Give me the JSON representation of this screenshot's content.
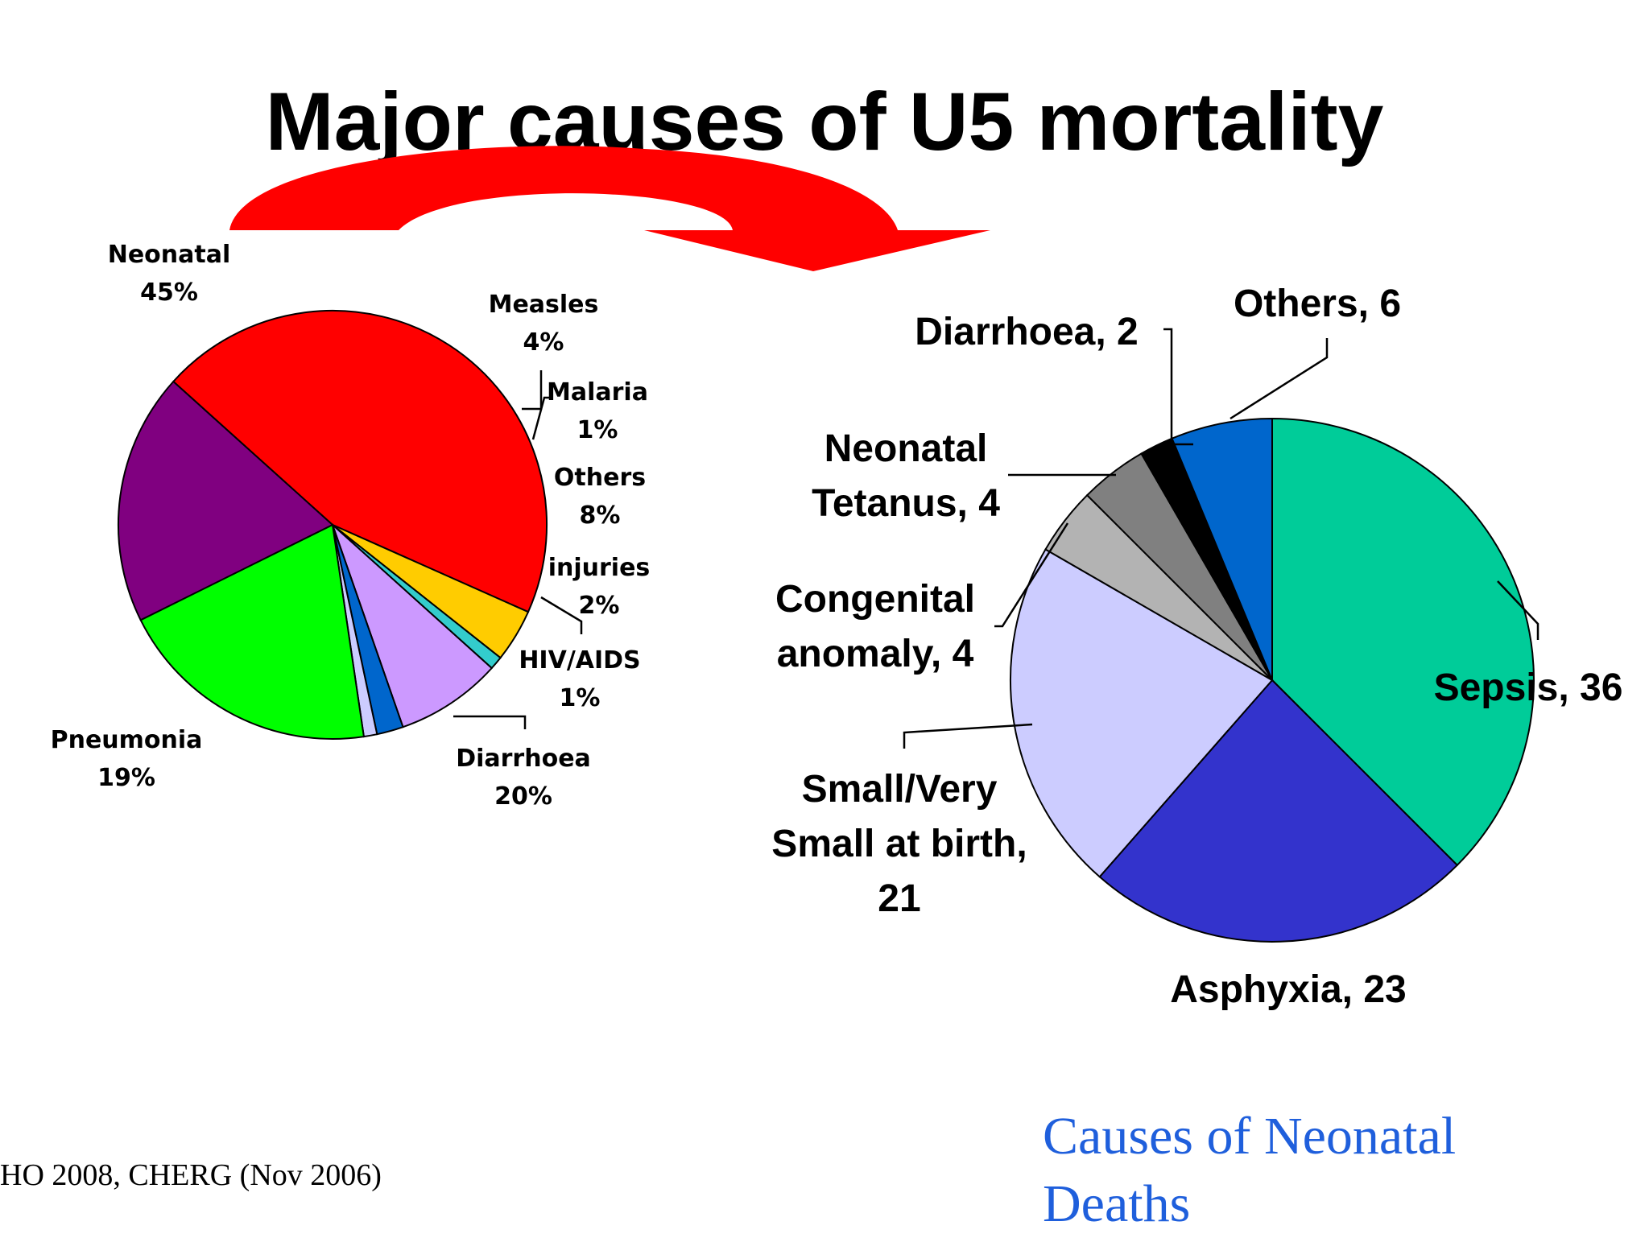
{
  "title": "Major causes of U5 mortality",
  "source": "HO 2008, CHERG (Nov 2006)",
  "caption": "Causes of Neonatal Deaths",
  "colors": {
    "arrow": "#ff0000",
    "caption": "#1f5fdc"
  },
  "chart_data": [
    {
      "type": "pie",
      "values_unit": "percent",
      "slices": [
        {
          "name": "Neonatal",
          "value": 45,
          "label": "45%",
          "color": "#ff0000"
        },
        {
          "name": "Measles",
          "value": 4,
          "label": "4%",
          "color": "#ffcc00"
        },
        {
          "name": "Malaria",
          "value": 1,
          "label": "1%",
          "color": "#33cccc"
        },
        {
          "name": "Others",
          "value": 8,
          "label": "8%",
          "color": "#cc99ff"
        },
        {
          "name": "injuries",
          "value": 2,
          "label": "2%",
          "color": "#0066cc"
        },
        {
          "name": "HIV/AIDS",
          "value": 1,
          "label": "1%",
          "color": "#ccccff"
        },
        {
          "name": "Diarrhoea",
          "value": 20,
          "label": "20%",
          "color": "#00ff00"
        },
        {
          "name": "Pneumonia",
          "value": 19,
          "label": "19%",
          "color": "#800080"
        }
      ]
    },
    {
      "type": "pie",
      "title": "Causes of Neonatal Deaths",
      "slices": [
        {
          "name": "Sepsis",
          "value": 36,
          "label": "Sepsis, 36",
          "color": "#00cc99"
        },
        {
          "name": "Asphyxia",
          "value": 23,
          "label": "Asphyxia, 23",
          "color": "#3333cc"
        },
        {
          "name": "Small/Very Small at birth",
          "value": 21,
          "label_lines": [
            "Small/Very",
            "Small at birth,",
            "21"
          ],
          "color": "#ccccff"
        },
        {
          "name": "Congenital anomaly",
          "value": 4,
          "label_lines": [
            "Congenital",
            "anomaly, 4"
          ],
          "color": "#b3b3b3"
        },
        {
          "name": "Neonatal Tetanus",
          "value": 4,
          "label_lines": [
            "Neonatal",
            "Tetanus, 4"
          ],
          "color": "#808080"
        },
        {
          "name": "Diarrhoea",
          "value": 2,
          "label": "Diarrhoea, 2",
          "color": "#000000"
        },
        {
          "name": "Others",
          "value": 6,
          "label": "Others, 6",
          "color": "#0066cc"
        }
      ]
    }
  ]
}
